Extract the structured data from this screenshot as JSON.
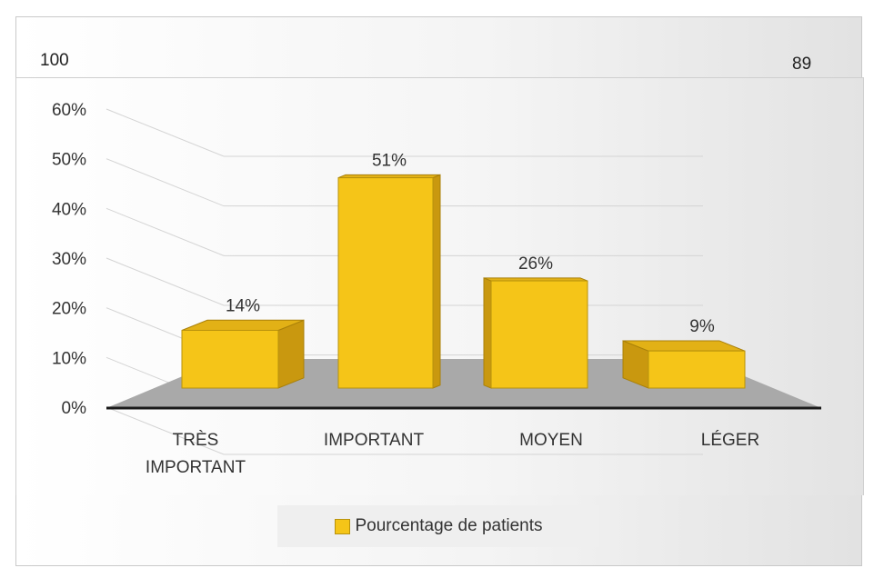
{
  "fragments": {
    "left": "100",
    "right": "89"
  },
  "colors": {
    "bar_front": "#f5c518",
    "bar_side": "#c9980f",
    "bar_top": "#e2b116",
    "floor": "#a9a9a9",
    "axis": "#1a1a1a",
    "grid": "#d4d4d4"
  },
  "chart_data": {
    "type": "bar",
    "title": "",
    "xlabel": "",
    "ylabel": "",
    "categories": [
      [
        "TRÈS",
        "IMPORTANT"
      ],
      [
        "IMPORTANT"
      ],
      [
        "MOYEN"
      ],
      [
        "LÉGER"
      ]
    ],
    "series": [
      {
        "name": "Pourcentage de patients",
        "values": [
          14,
          51,
          26,
          9
        ],
        "labels": [
          "14%",
          "51%",
          "26%",
          "9%"
        ]
      }
    ],
    "yticks": [
      "0%",
      "10%",
      "20%",
      "30%",
      "40%",
      "50%",
      "60%"
    ],
    "ylim": [
      0,
      60
    ],
    "legend": "bottom",
    "grid": true
  }
}
